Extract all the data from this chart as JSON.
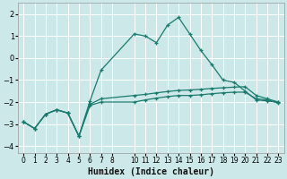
{
  "xlabel": "Humidex (Indice chaleur)",
  "background_color": "#cce8e8",
  "grid_color": "#ffffff",
  "line_color": "#1a7a6e",
  "xlim": [
    -0.5,
    23.5
  ],
  "ylim": [
    -4.3,
    2.5
  ],
  "yticks": [
    -4,
    -3,
    -2,
    -1,
    0,
    1,
    2
  ],
  "xtick_positions": [
    0,
    1,
    2,
    3,
    4,
    5,
    6,
    7,
    8,
    10,
    11,
    12,
    13,
    14,
    15,
    16,
    17,
    18,
    19,
    20,
    21,
    22,
    23
  ],
  "xtick_labels": [
    "0",
    "1",
    "2",
    "3",
    "4",
    "5",
    "6",
    "7",
    "8",
    "10",
    "11",
    "12",
    "13",
    "14",
    "15",
    "16",
    "17",
    "18",
    "19",
    "20",
    "21",
    "22",
    "23"
  ],
  "series1_x": [
    0,
    1,
    2,
    3,
    4,
    5,
    6,
    7,
    10,
    11,
    12,
    13,
    14,
    15,
    16,
    17,
    18,
    19,
    20,
    21,
    22,
    23
  ],
  "series1_y": [
    -2.9,
    -3.2,
    -2.55,
    -2.35,
    -2.5,
    -3.55,
    -1.95,
    -0.55,
    1.1,
    1.0,
    0.7,
    1.5,
    1.85,
    1.1,
    0.35,
    -0.3,
    -1.0,
    -1.1,
    -1.5,
    -1.9,
    -1.95,
    -2.0
  ],
  "series2_x": [
    0,
    1,
    2,
    3,
    4,
    5,
    6,
    7,
    10,
    11,
    12,
    13,
    14,
    15,
    16,
    17,
    18,
    19,
    20,
    21,
    22,
    23
  ],
  "series2_y": [
    -2.9,
    -3.2,
    -2.55,
    -2.35,
    -2.5,
    -3.55,
    -2.1,
    -1.85,
    -1.7,
    -1.65,
    -1.58,
    -1.52,
    -1.47,
    -1.45,
    -1.42,
    -1.38,
    -1.35,
    -1.32,
    -1.3,
    -1.7,
    -1.85,
    -2.0
  ],
  "series3_x": [
    0,
    1,
    2,
    3,
    4,
    5,
    6,
    7,
    10,
    11,
    12,
    13,
    14,
    15,
    16,
    17,
    18,
    19,
    20,
    21,
    22,
    23
  ],
  "series3_y": [
    -2.9,
    -3.2,
    -2.55,
    -2.35,
    -2.5,
    -3.55,
    -2.15,
    -2.0,
    -2.0,
    -1.9,
    -1.82,
    -1.75,
    -1.7,
    -1.7,
    -1.67,
    -1.62,
    -1.58,
    -1.55,
    -1.55,
    -1.85,
    -1.9,
    -2.05
  ]
}
